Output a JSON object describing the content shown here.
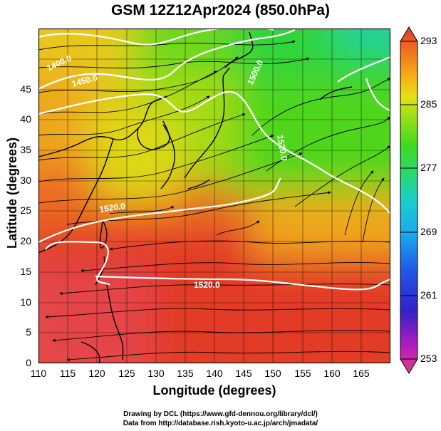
{
  "title": "GSM 12Z12Apr2024 (850.0hPa)",
  "x_axis_label": "Longitude (degrees)",
  "y_axis_label": "Latitude  (degrees)",
  "x_ticks": [
    "110",
    "115",
    "120",
    "125",
    "130",
    "135",
    "140",
    "145",
    "150",
    "155",
    "160",
    "165"
  ],
  "y_ticks": [
    "0",
    "5",
    "10",
    "15",
    "20",
    "25",
    "30",
    "35",
    "40",
    "45"
  ],
  "colorbar": {
    "ticks": [
      "293",
      "285",
      "277",
      "269",
      "261",
      "253"
    ],
    "range": [
      253,
      293
    ],
    "colors": [
      "#e23c8a",
      "#b21cbf",
      "#3320c8",
      "#1f5ae8",
      "#1ba8f0",
      "#19cfc9",
      "#2bd96a",
      "#3fdb1e",
      "#9be019",
      "#e6e012",
      "#f4ae15",
      "#f27a1c",
      "#e94a24",
      "#e03a2d"
    ]
  },
  "contour_labels": [
    {
      "text": "1400.0"
    },
    {
      "text": "1450.0"
    },
    {
      "text": "1500.0"
    },
    {
      "text": "1520.0"
    },
    {
      "text": "1520.0"
    },
    {
      "text": "1520.0"
    }
  ],
  "credits": [
    "Drawing by DCL (https://www.gfd-dennou.org/library/dcl/)",
    "Data from http://database.rish.kyoto-u.ac.jp/arch/jmadata/"
  ],
  "chart_data": {
    "type": "heatmap",
    "title": "GSM 12Z12Apr2024 (850.0hPa)",
    "xlabel": "Longitude (degrees)",
    "ylabel": "Latitude  (degrees)",
    "xlim": [
      110,
      170
    ],
    "ylim": [
      0,
      50
    ],
    "color_variable_range": [
      253,
      293
    ],
    "grid": true,
    "overlays": [
      "streamlines",
      "geopotential-height-contours",
      "coastlines"
    ]
  }
}
